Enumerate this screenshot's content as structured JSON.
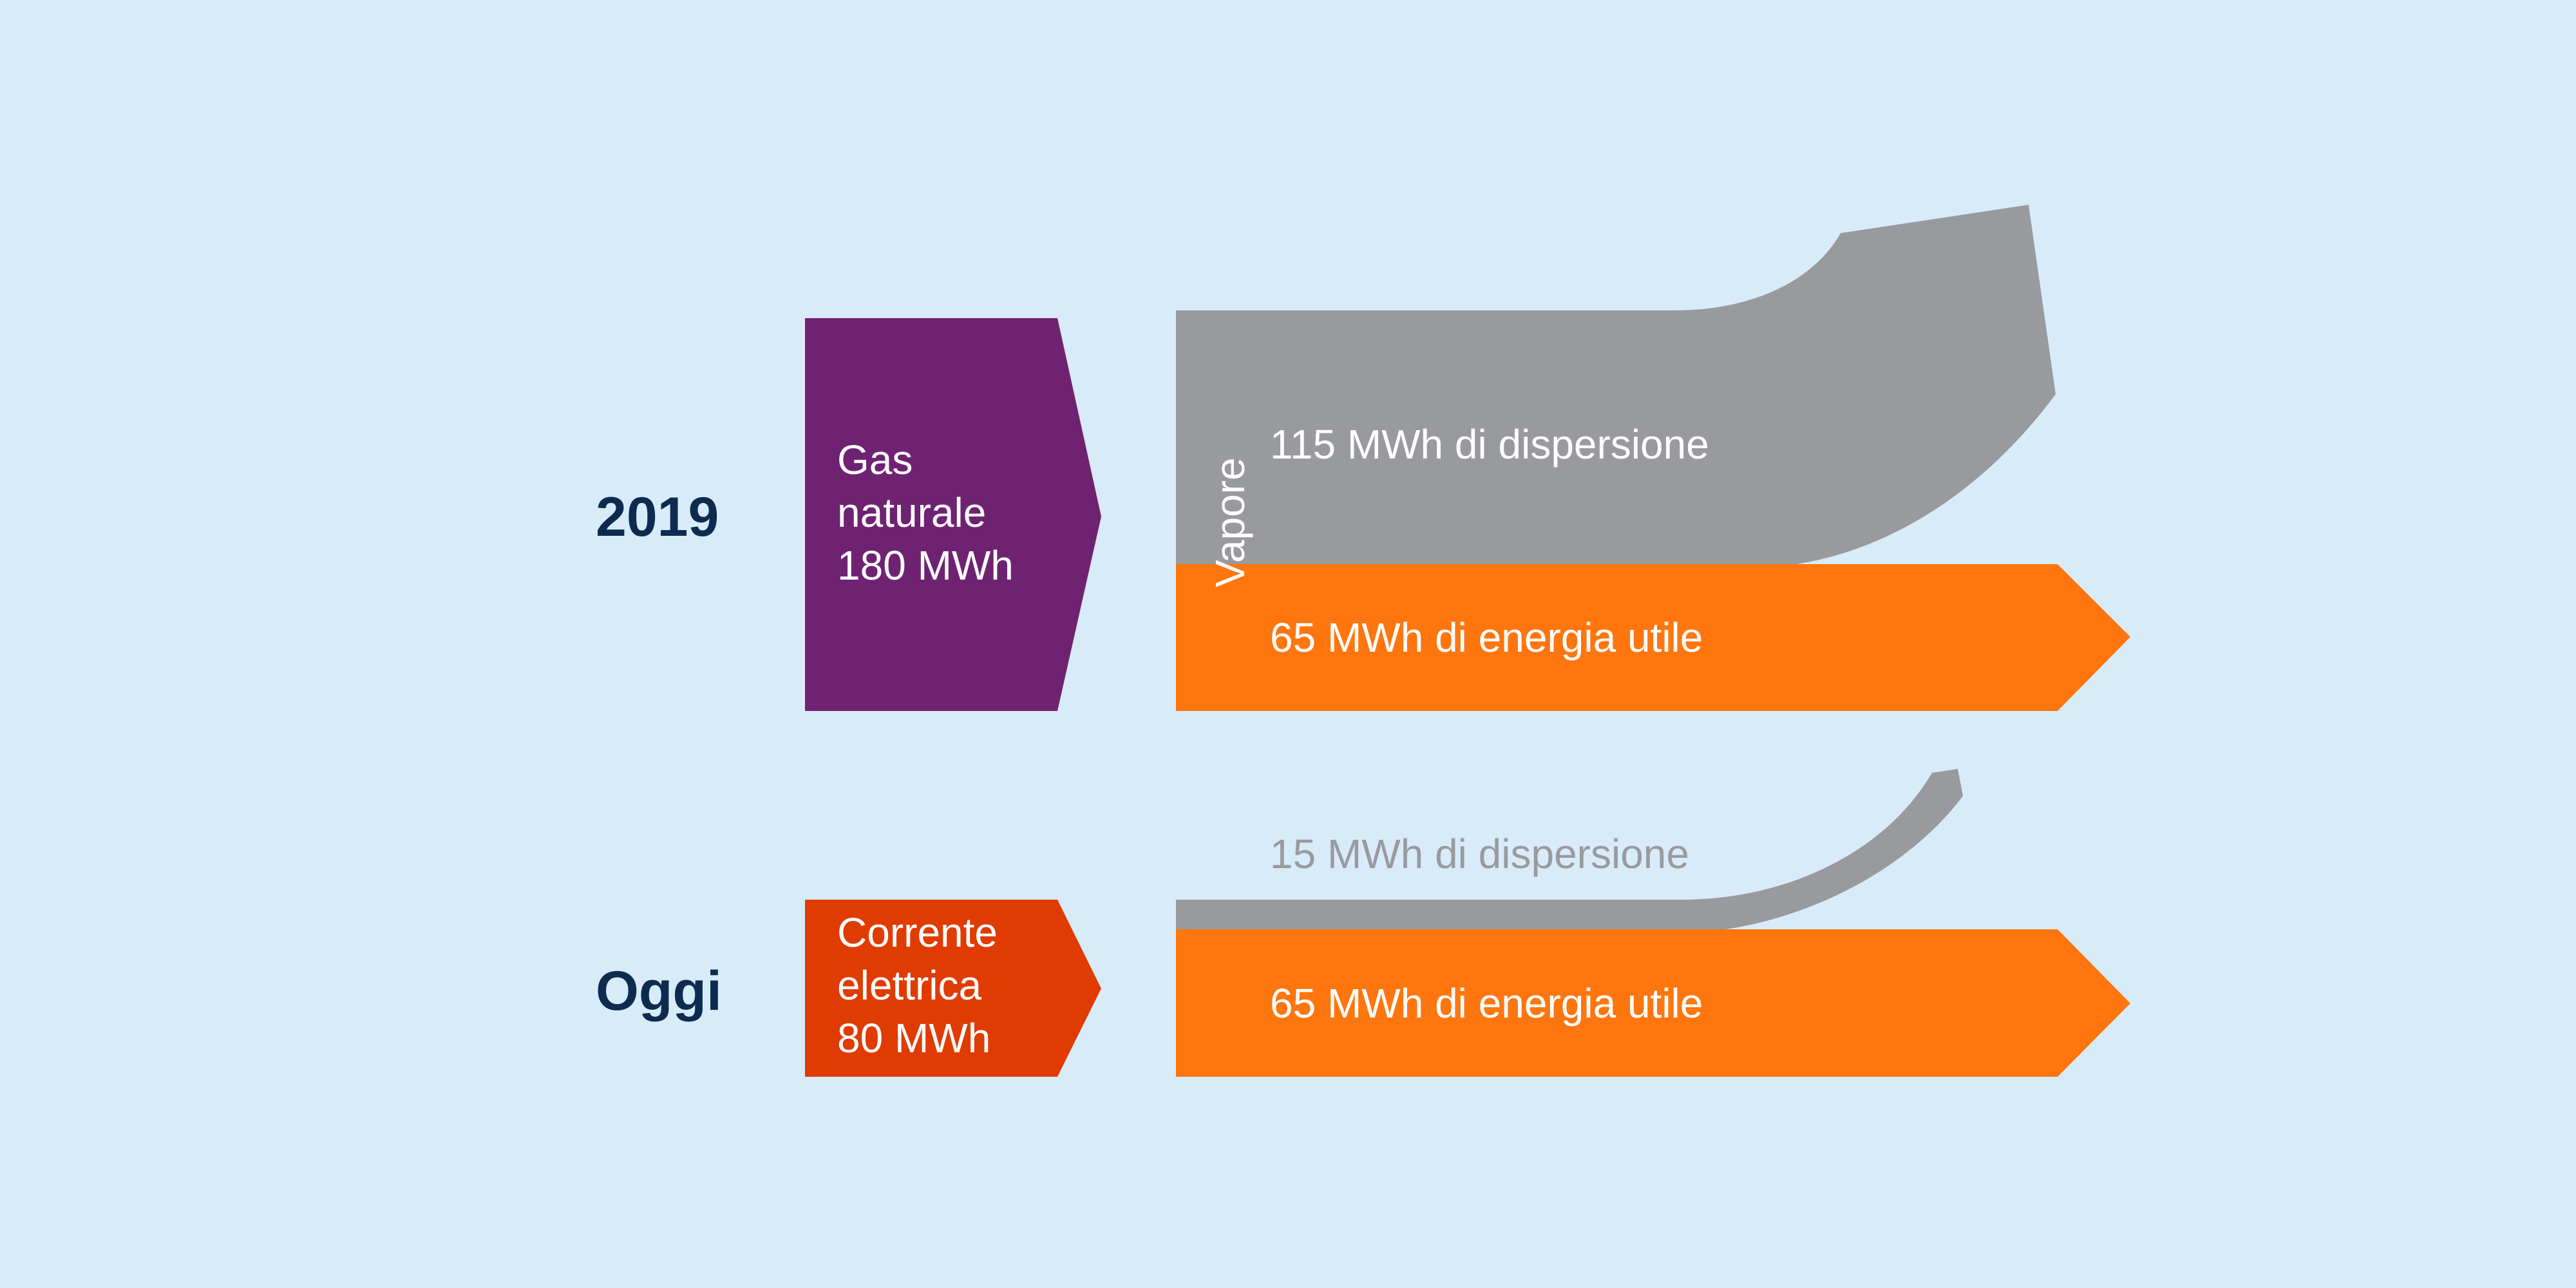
{
  "colors": {
    "background": "#d8ebf9",
    "year_label": "#0d2b4e",
    "gas": "#6f2272",
    "electric": "#e03b00",
    "useful_energy": "#ff760f",
    "dispersion": "#999a9e",
    "dispersion_label_today": "#9a9a9e",
    "label_text": "#ffffff"
  },
  "rows": [
    {
      "year": "2019",
      "source_lines": [
        "Gas",
        "naturale",
        "180 MWh"
      ],
      "vertical_label": "Vapore",
      "dispersion": "115 MWh di dispersione",
      "useful": "65 MWh di energia utile"
    },
    {
      "year": "Oggi",
      "source_lines": [
        "Corrente",
        "elettrica",
        "80 MWh"
      ],
      "dispersion": "15 MWh di dispersione",
      "useful": "65 MWh di energia utile"
    }
  ]
}
